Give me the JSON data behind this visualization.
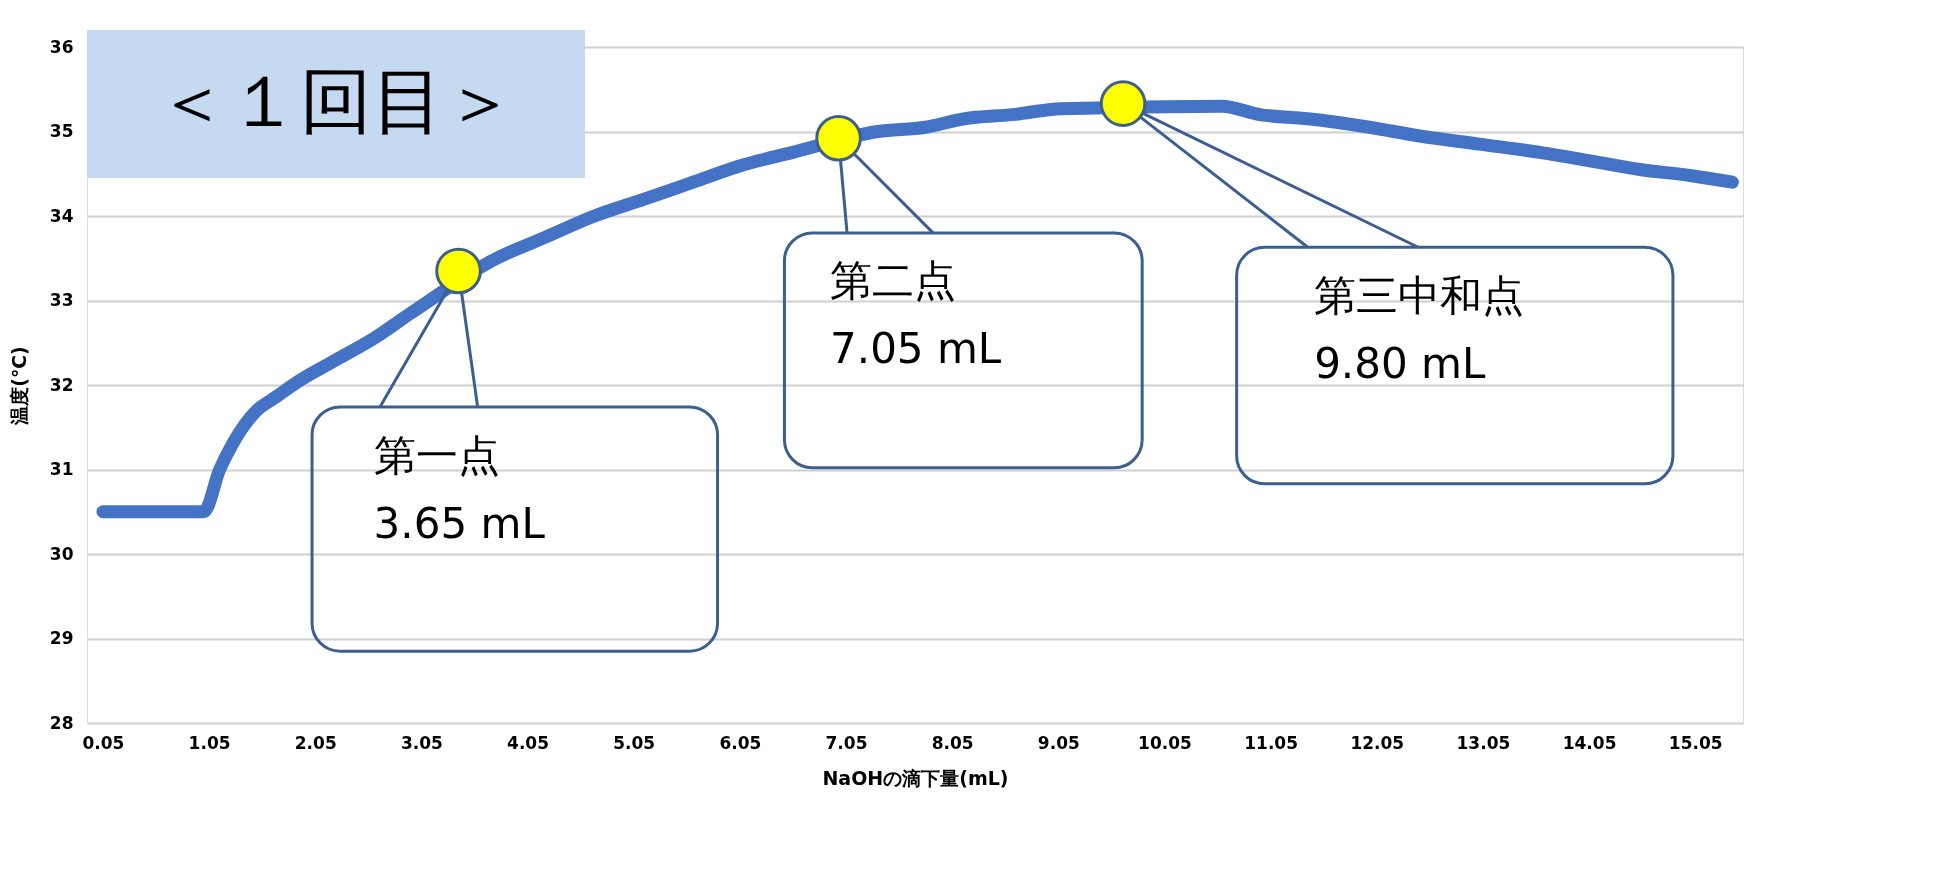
{
  "chart_data": {
    "type": "line",
    "title": "＜１回目＞",
    "xlabel": "NaOHの滴下量(mL)",
    "ylabel": "温度(℃)",
    "xlim": [
      -0.1,
      15.5
    ],
    "xticks": [
      0.05,
      1.05,
      2.05,
      3.05,
      4.05,
      5.05,
      6.05,
      7.05,
      8.05,
      9.05,
      10.05,
      11.05,
      12.05,
      13.05,
      14.05,
      15.05
    ],
    "ylim": [
      28,
      36
    ],
    "yticks": [
      28,
      29,
      30,
      31,
      32,
      33,
      34,
      35,
      36
    ],
    "grid": "y",
    "series": [
      {
        "color": "#4472c4",
        "x": [
          0.05,
          0.5,
          1.0,
          1.15,
          1.27,
          1.5,
          1.67,
          1.9,
          2.25,
          2.6,
          2.95,
          3.76,
          4.22,
          4.68,
          5.15,
          5.61,
          6.07,
          6.54,
          7.35,
          7.8,
          8.16,
          8.62,
          9.08,
          10.59,
          10.95,
          11.4,
          11.98,
          12.44,
          13.02,
          13.6,
          14.07,
          14.53,
          15.0,
          15.4
        ],
        "values": [
          30.5,
          30.5,
          30.5,
          31.0,
          31.3,
          31.7,
          31.85,
          32.05,
          32.3,
          32.55,
          32.85,
          33.5,
          33.75,
          34.0,
          34.2,
          34.4,
          34.6,
          34.75,
          35.0,
          35.05,
          35.15,
          35.2,
          35.27,
          35.3,
          35.2,
          35.15,
          35.05,
          34.95,
          34.85,
          34.75,
          34.65,
          34.55,
          34.48,
          34.4
        ]
      },
      {
        "type": "scatter",
        "color": "#ffff00",
        "x": [
          3.4,
          6.98,
          9.66
        ],
        "values": [
          33.35,
          34.92,
          35.33
        ]
      }
    ],
    "annotations": [
      {
        "text": "第一点\n3.65 mL",
        "x": 3.4,
        "y": 33.35
      },
      {
        "text": "第二点\n7.05 mL",
        "x": 6.98,
        "y": 34.92
      },
      {
        "text": "第三中和点\n9.80 mL",
        "x": 9.66,
        "y": 35.33
      }
    ]
  }
}
